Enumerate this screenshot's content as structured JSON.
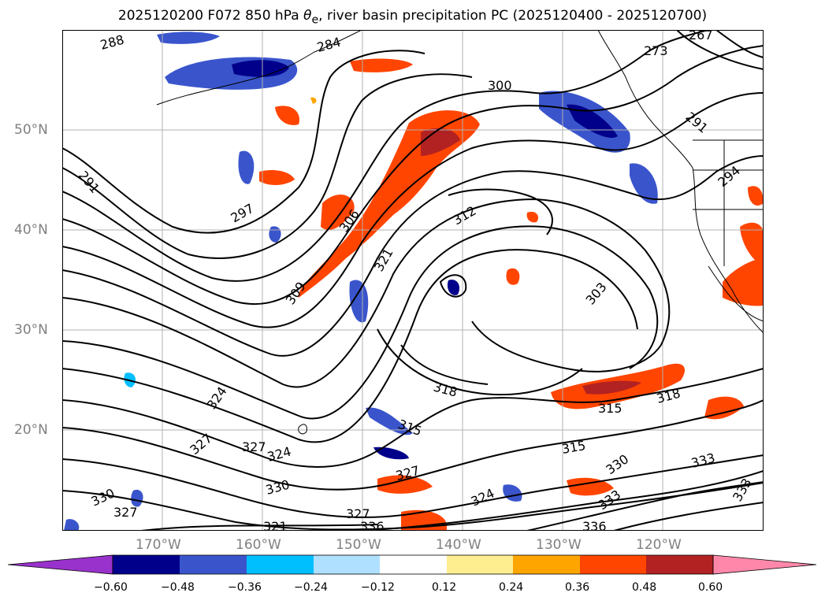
{
  "title": {
    "prefix": "2025120200 F072 850 hPa ",
    "theta_symbol": "θ",
    "theta_sub": "e",
    "suffix": ", river basin precipitation PC (2025120400 - 2025120700)"
  },
  "lat_labels": [
    "50°N",
    "40°N",
    "30°N",
    "20°N"
  ],
  "lon_labels": [
    "170°W",
    "160°W",
    "150°W",
    "140°W",
    "130°W",
    "120°W"
  ],
  "contour_labels": [
    "288",
    "284",
    "300",
    "267",
    "273",
    "291",
    "291",
    "294",
    "297",
    "306",
    "312",
    "321",
    "309",
    "303",
    "318",
    "315",
    "318",
    "315",
    "324",
    "327",
    "327",
    "324",
    "330",
    "327",
    "315",
    "330",
    "333",
    "333",
    "333",
    "330",
    "327",
    "324",
    "327",
    "321",
    "336",
    "336"
  ],
  "colorbar": {
    "ticks": [
      "−0.60",
      "−0.48",
      "−0.36",
      "−0.24",
      "−0.12",
      "0.12",
      "0.24",
      "0.36",
      "0.48",
      "0.60"
    ],
    "colors": {
      "under": "#9932cc",
      "bins": [
        "#00008b",
        "#3a55cc",
        "#00bfff",
        "#b0e0ff",
        "#ffffff",
        "#ffee90",
        "#ffa500",
        "#ff4500",
        "#b22222"
      ],
      "over": "#ff88aa"
    }
  },
  "palette": {
    "strong_neg": "#00008b",
    "neg": "#3a55cc",
    "weak_neg": "#00bfff",
    "weak_pos": "#ffa500",
    "pos": "#ff4500",
    "strong_pos": "#b22222",
    "contour": "#000000",
    "grid": "#b0b0b0",
    "tick_label": "#808080"
  }
}
